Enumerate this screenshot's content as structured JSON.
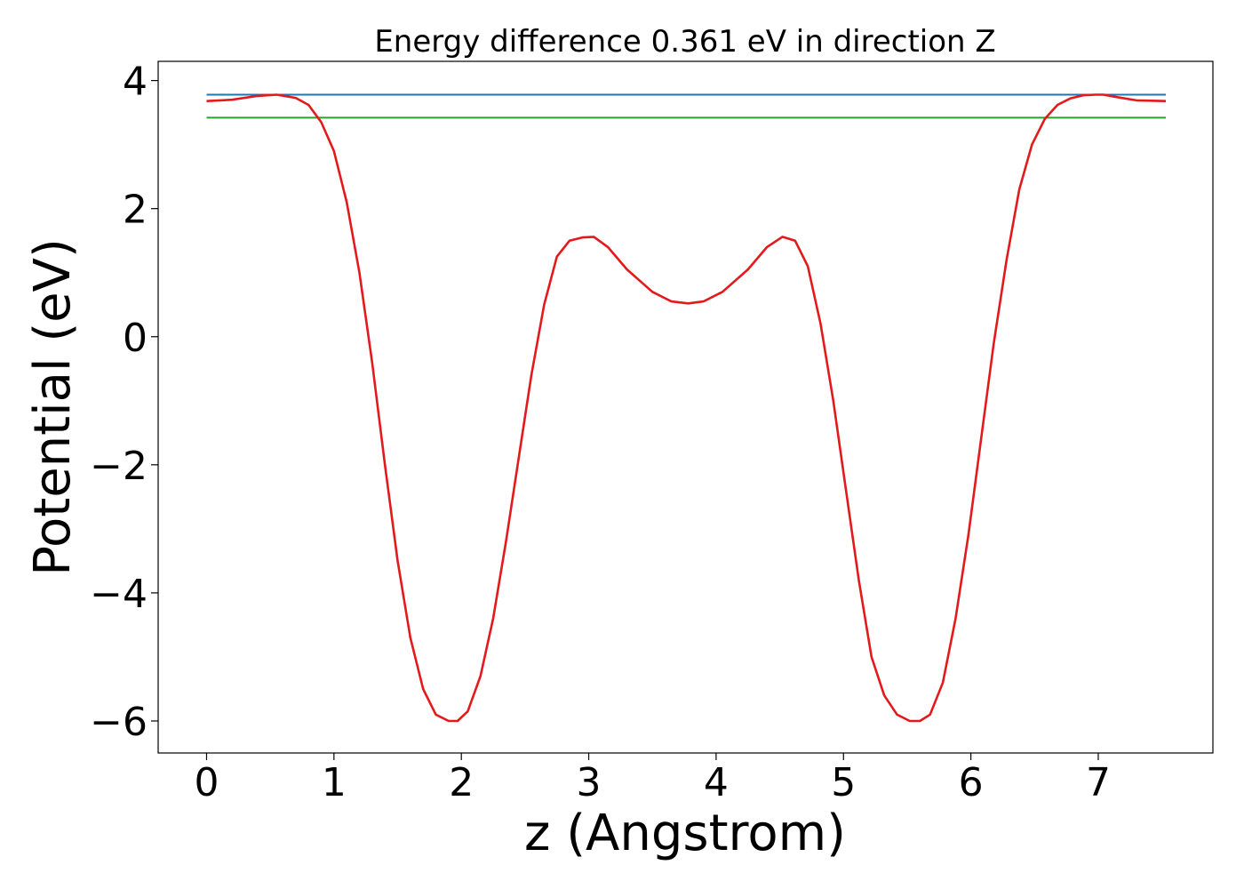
{
  "chart_data": {
    "type": "line",
    "title": "Energy difference 0.361 eV in direction Z",
    "xlabel": "z (Angstrom)",
    "ylabel": "Potential (eV)",
    "xlim": [
      -0.38,
      7.9
    ],
    "ylim": [
      -6.5,
      4.3
    ],
    "xticks": [
      0,
      1,
      2,
      3,
      4,
      5,
      6,
      7
    ],
    "yticks": [
      4,
      2,
      0,
      -2,
      -4,
      -6
    ],
    "ytick_labels": [
      "4",
      "2",
      "0",
      "−2",
      "−4",
      "−6"
    ],
    "grid": false,
    "series": [
      {
        "color": "#1f77b4",
        "x": [
          0.0,
          7.53
        ],
        "y": [
          3.78,
          3.78
        ]
      },
      {
        "color": "#2ca02c",
        "x": [
          0.0,
          7.53
        ],
        "y": [
          3.42,
          3.42
        ]
      },
      {
        "color": "#e31a1c",
        "x": [
          0.0,
          0.2,
          0.4,
          0.55,
          0.7,
          0.8,
          0.9,
          1.0,
          1.1,
          1.2,
          1.3,
          1.4,
          1.5,
          1.6,
          1.7,
          1.8,
          1.9,
          1.97,
          2.05,
          2.15,
          2.25,
          2.35,
          2.45,
          2.55,
          2.65,
          2.75,
          2.85,
          2.95,
          3.04,
          3.15,
          3.3,
          3.5,
          3.65,
          3.78,
          3.9,
          4.05,
          4.25,
          4.4,
          4.52,
          4.62,
          4.72,
          4.82,
          4.92,
          5.02,
          5.12,
          5.22,
          5.32,
          5.42,
          5.52,
          5.6,
          5.68,
          5.78,
          5.88,
          5.98,
          6.08,
          6.18,
          6.28,
          6.38,
          6.48,
          6.58,
          6.68,
          6.78,
          6.88,
          6.98,
          7.04,
          7.15,
          7.3,
          7.53
        ],
        "y": [
          3.68,
          3.7,
          3.76,
          3.78,
          3.73,
          3.62,
          3.35,
          2.9,
          2.1,
          1.0,
          -0.4,
          -2.0,
          -3.5,
          -4.7,
          -5.5,
          -5.9,
          -6.0,
          -6.0,
          -5.85,
          -5.3,
          -4.4,
          -3.2,
          -1.9,
          -0.6,
          0.5,
          1.25,
          1.5,
          1.55,
          1.56,
          1.4,
          1.05,
          0.7,
          0.55,
          0.52,
          0.55,
          0.7,
          1.05,
          1.4,
          1.56,
          1.5,
          1.1,
          0.2,
          -1.0,
          -2.4,
          -3.8,
          -5.0,
          -5.6,
          -5.9,
          -6.0,
          -6.0,
          -5.9,
          -5.4,
          -4.4,
          -3.1,
          -1.6,
          -0.1,
          1.2,
          2.3,
          3.0,
          3.4,
          3.62,
          3.72,
          3.77,
          3.78,
          3.78,
          3.74,
          3.69,
          3.68
        ]
      }
    ]
  }
}
